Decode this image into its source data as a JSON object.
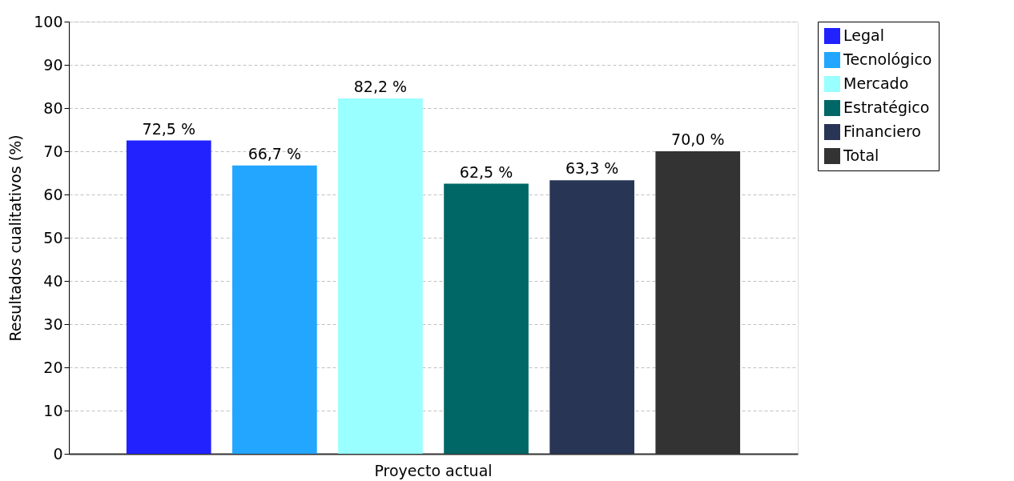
{
  "chart_data": {
    "type": "bar",
    "ylabel": "Resultados cualitativos (%)",
    "categories": [
      "Proyecto actual"
    ],
    "series": [
      {
        "name": "Legal",
        "color": "#2222ff",
        "values": [
          72.5
        ],
        "value_labels": [
          "72,5 %"
        ]
      },
      {
        "name": "Tecnológico",
        "color": "#22a6ff",
        "values": [
          66.7
        ],
        "value_labels": [
          "66,7 %"
        ]
      },
      {
        "name": "Mercado",
        "color": "#99ffff",
        "values": [
          82.2
        ],
        "value_labels": [
          "82,2 %"
        ]
      },
      {
        "name": "Estratégico",
        "color": "#006666",
        "values": [
          62.5
        ],
        "value_labels": [
          "62,5 %"
        ]
      },
      {
        "name": "Financiero",
        "color": "#283555",
        "values": [
          63.3
        ],
        "value_labels": [
          "63,3 %"
        ]
      },
      {
        "name": "Total",
        "color": "#333333",
        "values": [
          70.0
        ],
        "value_labels": [
          "70,0 %"
        ]
      }
    ],
    "ylim": [
      0,
      100
    ],
    "yticks": [
      0,
      10,
      20,
      30,
      40,
      50,
      60,
      70,
      80,
      90,
      100
    ],
    "grid": "y",
    "legend": "right"
  }
}
